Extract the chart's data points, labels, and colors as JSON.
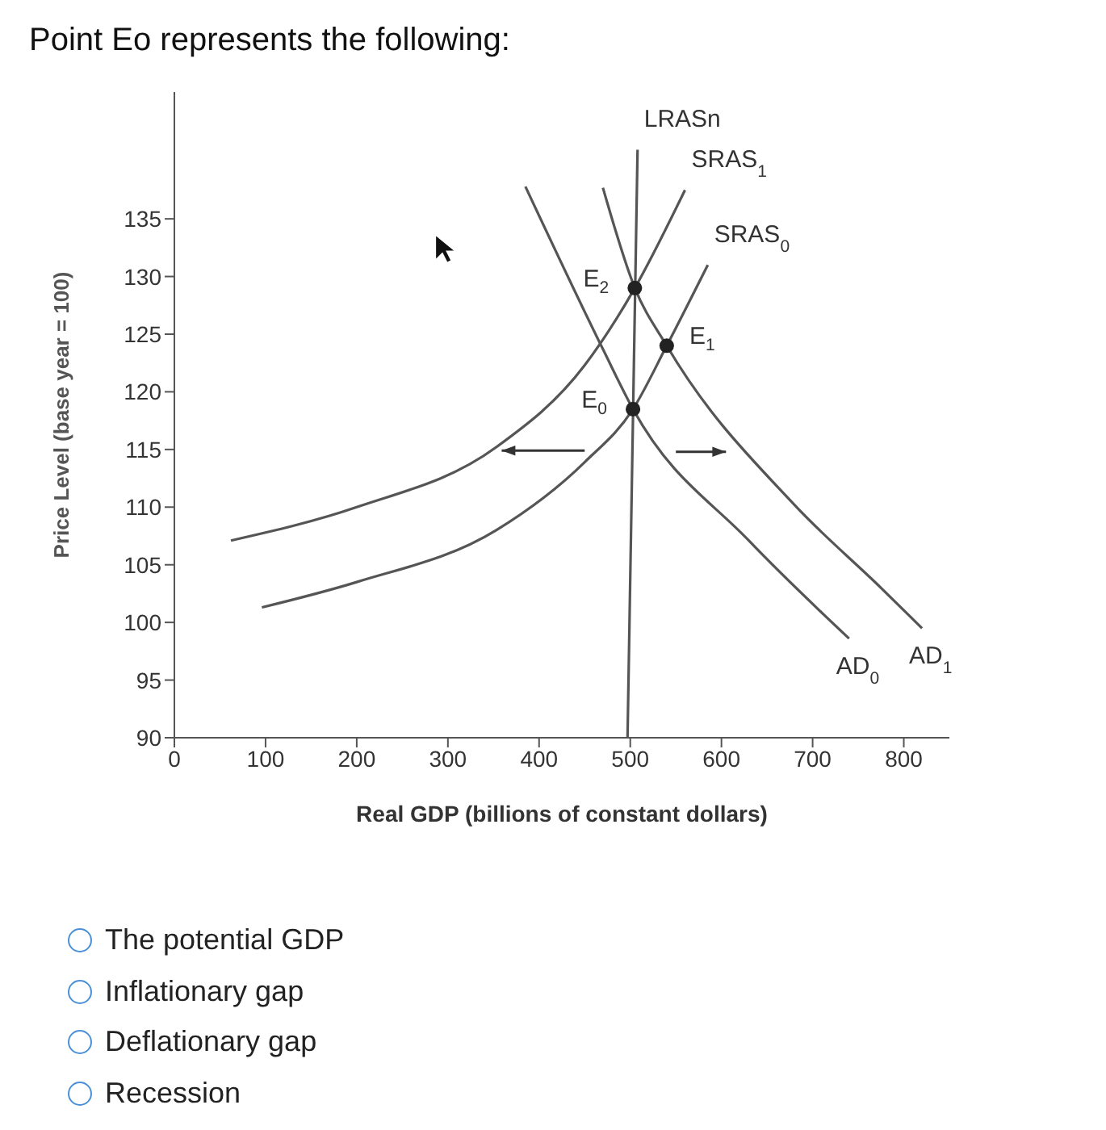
{
  "chart_data": {
    "type": "line",
    "title": "Point Eo represents the following:",
    "xlabel": "Real GDP (billions of constant dollars)",
    "ylabel": "Price Level (base year = 100)",
    "xlim": [
      0,
      850
    ],
    "xticks": [
      0,
      100,
      200,
      300,
      400,
      500,
      600,
      700,
      800
    ],
    "ylim": [
      90,
      146
    ],
    "yticks": [
      90,
      95,
      100,
      105,
      110,
      115,
      120,
      125,
      130,
      135
    ],
    "legend": false,
    "marker": "none",
    "line_style": "solid",
    "series": [
      {
        "name": "LRASn",
        "color": "#555555",
        "x": [
          497,
          508
        ],
        "values": [
          90,
          141
        ]
      },
      {
        "name": "SRAS$_{0}$",
        "color": "#555555",
        "x": [
          96,
          200,
          353,
          450,
          503,
          540,
          585
        ],
        "values": [
          101.3,
          103.5,
          108,
          113.9,
          118.5,
          124,
          131
        ]
      },
      {
        "name": "SRAS$_{1}$",
        "color": "#555555",
        "x": [
          62,
          200,
          353,
          450,
          505,
          560
        ],
        "values": [
          107.1,
          110,
          115.2,
          122.3,
          129,
          137.5
        ]
      },
      {
        "name": "AD$_{0}$",
        "color": "#555555",
        "x": [
          385,
          470,
          503,
          630,
          740
        ],
        "values": [
          137.8,
          123.7,
          118.5,
          107.1,
          98.6
        ]
      },
      {
        "name": "AD$_{1}$",
        "color": "#555555",
        "x": [
          470,
          505,
          540,
          680,
          775,
          820
        ],
        "values": [
          137.7,
          129,
          124,
          110.2,
          103,
          99.5
        ]
      },
      {
        "type": "scatter",
        "marker": "circle",
        "color": "#222222",
        "x": [
          503,
          540,
          505
        ],
        "values": [
          118.5,
          124,
          129
        ]
      }
    ],
    "annotations": [
      {
        "text": "E$_{0}$",
        "x": 503,
        "y": 118.5
      },
      {
        "text": "E$_{1}$",
        "x": 540,
        "y": 124
      },
      {
        "text": "E$_{2}$",
        "x": 505,
        "y": 129
      },
      "The potential GDP",
      "Inflationary gap",
      "Deflationary gap",
      "Recession"
    ]
  }
}
